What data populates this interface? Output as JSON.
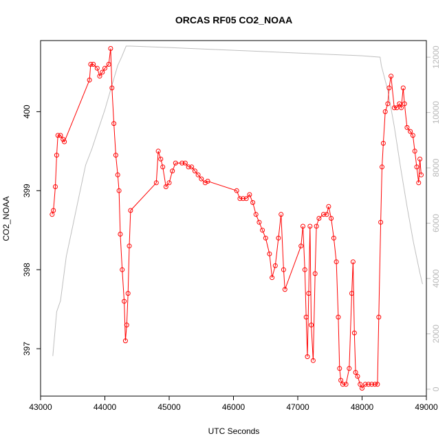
{
  "chart_data": {
    "type": "line",
    "title": "ORCAS RF05 CO2_NOAA",
    "xlabel": "UTC Seconds",
    "ylabel": "CO2_NOAA",
    "xlim": [
      43000,
      49000
    ],
    "ylim": [
      396.4,
      400.9
    ],
    "y2lim": [
      -250,
      12600
    ],
    "xticks": [
      "43000",
      "44000",
      "45000",
      "46000",
      "47000",
      "48000",
      "49000"
    ],
    "yticks": [
      "397",
      "398",
      "399",
      "400"
    ],
    "y2ticks": [
      "0",
      "2000",
      "4000",
      "6000",
      "8000",
      "10000",
      "12000"
    ],
    "series": [
      {
        "axis": "left",
        "style": "line+circles",
        "color": "#ff0000",
        "points": [
          [
            43180,
            398.7
          ],
          [
            43200,
            398.75
          ],
          [
            43230,
            399.05
          ],
          [
            43250,
            399.45
          ],
          [
            43270,
            399.7
          ],
          [
            43310,
            399.7
          ],
          [
            43350,
            399.65
          ],
          [
            43370,
            399.62
          ],
          [
            43760,
            400.4
          ],
          [
            43780,
            400.6
          ],
          [
            43820,
            400.6
          ],
          [
            43880,
            400.55
          ],
          [
            43920,
            400.45
          ],
          [
            43960,
            400.5
          ],
          [
            44000,
            400.55
          ],
          [
            44060,
            400.6
          ],
          [
            44090,
            400.8
          ],
          [
            44110,
            400.3
          ],
          [
            44140,
            399.85
          ],
          [
            44170,
            399.45
          ],
          [
            44200,
            399.2
          ],
          [
            44220,
            399.0
          ],
          [
            44240,
            398.45
          ],
          [
            44270,
            398.0
          ],
          [
            44300,
            397.6
          ],
          [
            44320,
            397.1
          ],
          [
            44340,
            397.3
          ],
          [
            44360,
            397.7
          ],
          [
            44380,
            398.3
          ],
          [
            44400,
            398.75
          ],
          [
            44800,
            399.1
          ],
          [
            44830,
            399.5
          ],
          [
            44870,
            399.4
          ],
          [
            44900,
            399.3
          ],
          [
            44950,
            399.05
          ],
          [
            45000,
            399.1
          ],
          [
            45050,
            399.25
          ],
          [
            45100,
            399.35
          ],
          [
            45200,
            399.35
          ],
          [
            45250,
            399.35
          ],
          [
            45300,
            399.3
          ],
          [
            45350,
            399.3
          ],
          [
            45400,
            399.25
          ],
          [
            45450,
            399.2
          ],
          [
            45500,
            399.15
          ],
          [
            45560,
            399.1
          ],
          [
            45600,
            399.12
          ],
          [
            46050,
            399.0
          ],
          [
            46100,
            398.9
          ],
          [
            46150,
            398.9
          ],
          [
            46200,
            398.9
          ],
          [
            46250,
            398.95
          ],
          [
            46300,
            398.85
          ],
          [
            46350,
            398.7
          ],
          [
            46400,
            398.6
          ],
          [
            46450,
            398.5
          ],
          [
            46500,
            398.4
          ],
          [
            46560,
            398.2
          ],
          [
            46600,
            397.9
          ],
          [
            46650,
            398.05
          ],
          [
            46700,
            398.4
          ],
          [
            46740,
            398.7
          ],
          [
            46780,
            398.0
          ],
          [
            46800,
            397.75
          ],
          [
            47050,
            398.3
          ],
          [
            47080,
            398.55
          ],
          [
            47110,
            398.0
          ],
          [
            47130,
            397.4
          ],
          [
            47150,
            396.9
          ],
          [
            47170,
            397.7
          ],
          [
            47190,
            398.55
          ],
          [
            47210,
            397.3
          ],
          [
            47240,
            396.85
          ],
          [
            47270,
            397.95
          ],
          [
            47290,
            398.55
          ],
          [
            47330,
            398.65
          ],
          [
            47400,
            398.7
          ],
          [
            47450,
            398.7
          ],
          [
            47480,
            398.8
          ],
          [
            47520,
            398.65
          ],
          [
            47560,
            398.4
          ],
          [
            47600,
            398.1
          ],
          [
            47630,
            397.4
          ],
          [
            47650,
            396.75
          ],
          [
            47670,
            396.6
          ],
          [
            47700,
            396.55
          ],
          [
            47750,
            396.55
          ],
          [
            47800,
            396.75
          ],
          [
            47840,
            397.7
          ],
          [
            47860,
            398.1
          ],
          [
            47880,
            397.2
          ],
          [
            47900,
            396.7
          ],
          [
            47930,
            396.65
          ],
          [
            47970,
            396.55
          ],
          [
            48000,
            396.5
          ],
          [
            48050,
            396.55
          ],
          [
            48100,
            396.55
          ],
          [
            48150,
            396.55
          ],
          [
            48200,
            396.55
          ],
          [
            48240,
            396.55
          ],
          [
            48260,
            397.4
          ],
          [
            48290,
            398.6
          ],
          [
            48310,
            399.3
          ],
          [
            48330,
            399.6
          ],
          [
            48360,
            400.0
          ],
          [
            48400,
            400.1
          ],
          [
            48420,
            400.3
          ],
          [
            48450,
            400.45
          ],
          [
            48500,
            400.05
          ],
          [
            48540,
            400.05
          ],
          [
            48580,
            400.1
          ],
          [
            48610,
            400.05
          ],
          [
            48640,
            400.3
          ],
          [
            48660,
            400.1
          ],
          [
            48700,
            399.8
          ],
          [
            48750,
            399.75
          ],
          [
            48790,
            399.7
          ],
          [
            48820,
            399.5
          ],
          [
            48850,
            399.3
          ],
          [
            48880,
            399.1
          ],
          [
            48900,
            399.4
          ],
          [
            48920,
            399.2
          ]
        ]
      },
      {
        "axis": "right",
        "style": "line",
        "color": "#bebebe",
        "points": [
          [
            43190,
            1200
          ],
          [
            43250,
            2800
          ],
          [
            43310,
            3200
          ],
          [
            43400,
            4800
          ],
          [
            43500,
            5900
          ],
          [
            43600,
            7000
          ],
          [
            43700,
            8100
          ],
          [
            43800,
            8700
          ],
          [
            43900,
            9400
          ],
          [
            44000,
            10100
          ],
          [
            44100,
            10900
          ],
          [
            44200,
            11700
          ],
          [
            44260,
            12000
          ],
          [
            44330,
            12400
          ],
          [
            44400,
            12400
          ],
          [
            45000,
            12350
          ],
          [
            46000,
            12250
          ],
          [
            47000,
            12150
          ],
          [
            48000,
            12050
          ],
          [
            48280,
            12000
          ],
          [
            48300,
            11700
          ],
          [
            48400,
            10800
          ],
          [
            48500,
            9500
          ],
          [
            48600,
            8000
          ],
          [
            48700,
            6600
          ],
          [
            48800,
            5300
          ],
          [
            48900,
            4200
          ],
          [
            48940,
            3800
          ]
        ]
      }
    ]
  }
}
